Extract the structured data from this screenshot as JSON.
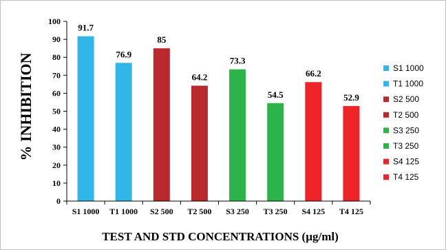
{
  "chart_data": {
    "type": "bar",
    "title": "",
    "xlabel": "TEST AND STD CONCENTRATIONS (µg/ml)",
    "ylabel": "% INHIBITION",
    "ylim": [
      0,
      100
    ],
    "yticks": [
      0,
      10,
      20,
      30,
      40,
      50,
      60,
      70,
      80,
      90,
      100
    ],
    "categories": [
      "S1 1000",
      "T1 1000",
      "S2 500",
      "T2 500",
      "S3 250",
      "T3 250",
      "S4 125",
      "T4 125"
    ],
    "values": [
      91.7,
      76.9,
      85,
      64.2,
      73.3,
      54.5,
      66.2,
      52.9
    ],
    "value_labels": [
      "91.7",
      "76.9",
      "85",
      "64.2",
      "73.3",
      "54.5",
      "66.2",
      "52.9"
    ],
    "bar_colors": [
      "#31B6E7",
      "#31B6E7",
      "#B8282C",
      "#B8282C",
      "#2CB34A",
      "#2CB34A",
      "#EE2528",
      "#EE2528"
    ],
    "legend": {
      "position": "right",
      "entries": [
        "S1 1000",
        "T1 1000",
        "S2 500",
        "T2 500",
        "S3 250",
        "T3 250",
        "S4 125",
        "T4 125"
      ]
    },
    "grid": false
  }
}
